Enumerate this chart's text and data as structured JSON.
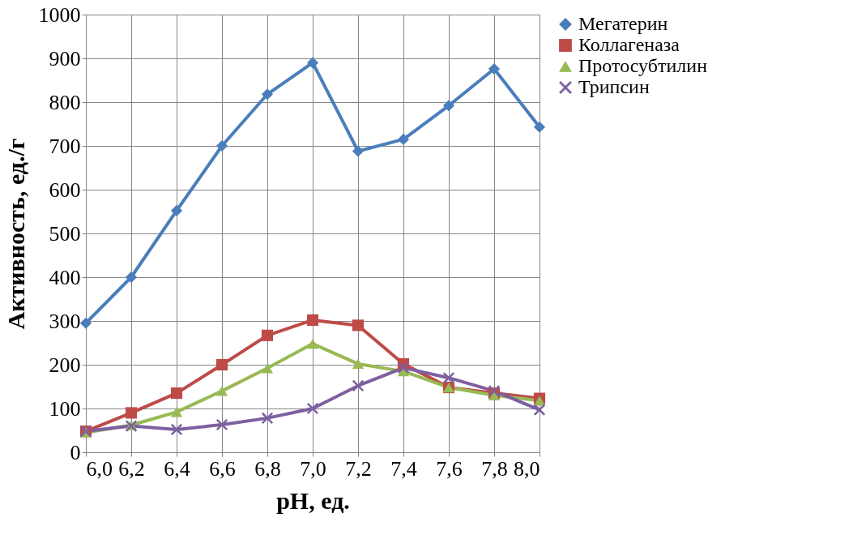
{
  "chart_data": {
    "type": "line",
    "xlabel": "pH, ед.",
    "ylabel": "Активность, ед./г",
    "x": [
      6.0,
      6.2,
      6.4,
      6.6,
      6.8,
      7.0,
      7.2,
      7.4,
      7.6,
      7.8,
      8.0
    ],
    "xlim": [
      6.0,
      8.0
    ],
    "xticks": [
      {
        "value": 6.0,
        "label": "6,0"
      },
      {
        "value": 6.2,
        "label": "6,2"
      },
      {
        "value": 6.4,
        "label": "6,4"
      },
      {
        "value": 6.6,
        "label": "6,6"
      },
      {
        "value": 6.8,
        "label": "6,8"
      },
      {
        "value": 7.0,
        "label": "7,0"
      },
      {
        "value": 7.2,
        "label": "7,2"
      },
      {
        "value": 7.4,
        "label": "7,4"
      },
      {
        "value": 7.6,
        "label": "7,6"
      },
      {
        "value": 7.8,
        "label": "7,8"
      },
      {
        "value": 8.0,
        "label": "8,0"
      }
    ],
    "ylim": [
      0,
      1000
    ],
    "yticks": [
      0,
      100,
      200,
      300,
      400,
      500,
      600,
      700,
      800,
      900,
      1000
    ],
    "grid": true,
    "legend": "right",
    "line_style": "solid",
    "series": [
      {
        "name": "Мегатерин",
        "color": "#4a7ebb",
        "marker": "diamond",
        "values": [
          295,
          400,
          552,
          700,
          818,
          890,
          688,
          715,
          792,
          876,
          743
        ]
      },
      {
        "name": "Коллагеназа",
        "color": "#be4b48",
        "marker": "square",
        "values": [
          48,
          90,
          135,
          200,
          267,
          302,
          290,
          202,
          148,
          135,
          123
        ]
      },
      {
        "name": "Протосубтилин",
        "color": "#98b954",
        "marker": "triangle",
        "values": [
          45,
          62,
          92,
          140,
          192,
          248,
          202,
          185,
          148,
          130,
          118
        ]
      },
      {
        "name": "Трипсин",
        "color": "#7d60a0",
        "marker": "cross",
        "values": [
          48,
          60,
          52,
          63,
          78,
          100,
          152,
          193,
          170,
          140,
          97
        ]
      }
    ]
  }
}
